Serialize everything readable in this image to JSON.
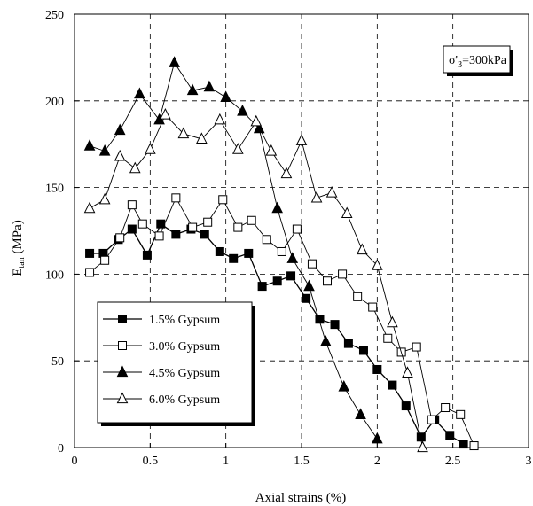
{
  "chart_data": {
    "type": "scatter",
    "xlabel": "Axial strains (%)",
    "ylabel": "E",
    "ylabel_subscript": "tan",
    "ylabel_unit": " (MPa)",
    "xlim": [
      0,
      3
    ],
    "ylim": [
      0,
      250
    ],
    "xticks": [
      0,
      0.5,
      1,
      1.5,
      2,
      2.5,
      3
    ],
    "xtick_labels": [
      "0",
      "0.5",
      "1",
      "1.5",
      "2",
      "2.5",
      "3"
    ],
    "yticks": [
      0,
      50,
      100,
      150,
      200,
      250
    ],
    "ytick_labels": [
      "0",
      "50",
      "100",
      "150",
      "200",
      "250"
    ],
    "grid": "dashed",
    "annotation": {
      "sigma": "σ",
      "prime": "'",
      "subscript": "3",
      "rest": "=300kPa"
    },
    "legend_position": "lower-left",
    "series": [
      {
        "name": "1.5% Gypsum",
        "marker": "square-filled",
        "x": [
          0.1,
          0.19,
          0.29,
          0.38,
          0.48,
          0.57,
          0.67,
          0.77,
          0.86,
          0.96,
          1.05,
          1.15,
          1.24,
          1.34,
          1.43,
          1.53,
          1.62,
          1.72,
          1.81,
          1.91,
          2.0,
          2.1,
          2.19,
          2.29,
          2.38,
          2.48,
          2.57
        ],
        "y": [
          112,
          112,
          120,
          126,
          111,
          129,
          123,
          126,
          123,
          113,
          109,
          112,
          93,
          96,
          99,
          86,
          74,
          71,
          60,
          56,
          45,
          36,
          24,
          6,
          16,
          7,
          2
        ]
      },
      {
        "name": "3.0% Gypsum",
        "marker": "square-open",
        "x": [
          0.1,
          0.2,
          0.3,
          0.38,
          0.45,
          0.56,
          0.67,
          0.78,
          0.88,
          0.98,
          1.08,
          1.17,
          1.27,
          1.37,
          1.47,
          1.57,
          1.67,
          1.77,
          1.87,
          1.97,
          2.07,
          2.16,
          2.26,
          2.36,
          2.45,
          2.55,
          2.64
        ],
        "y": [
          101,
          108,
          121,
          140,
          129,
          122,
          144,
          127,
          130,
          143,
          127,
          131,
          120,
          113,
          126,
          106,
          96,
          100,
          87,
          81,
          63,
          55,
          58,
          16,
          23,
          19,
          1
        ]
      },
      {
        "name": "4.5% Gypsum",
        "marker": "triangle-filled",
        "x": [
          0.1,
          0.2,
          0.3,
          0.43,
          0.56,
          0.66,
          0.78,
          0.89,
          1.0,
          1.11,
          1.22,
          1.34,
          1.44,
          1.55,
          1.66,
          1.78,
          1.89,
          2.0
        ],
        "y": [
          174,
          171,
          183,
          204,
          189,
          222,
          206,
          208,
          202,
          194,
          184,
          138,
          109,
          93,
          61,
          35,
          19,
          5
        ]
      },
      {
        "name": "6.0% Gypsum",
        "marker": "triangle-open",
        "x": [
          0.1,
          0.2,
          0.3,
          0.4,
          0.5,
          0.6,
          0.72,
          0.84,
          0.96,
          1.08,
          1.2,
          1.3,
          1.4,
          1.5,
          1.6,
          1.7,
          1.8,
          1.9,
          2.0,
          2.1,
          2.2,
          2.3
        ],
        "y": [
          138,
          143,
          168,
          161,
          172,
          192,
          181,
          178,
          189,
          172,
          188,
          171,
          158,
          177,
          144,
          147,
          135,
          114,
          105,
          72,
          43,
          0
        ]
      }
    ]
  }
}
